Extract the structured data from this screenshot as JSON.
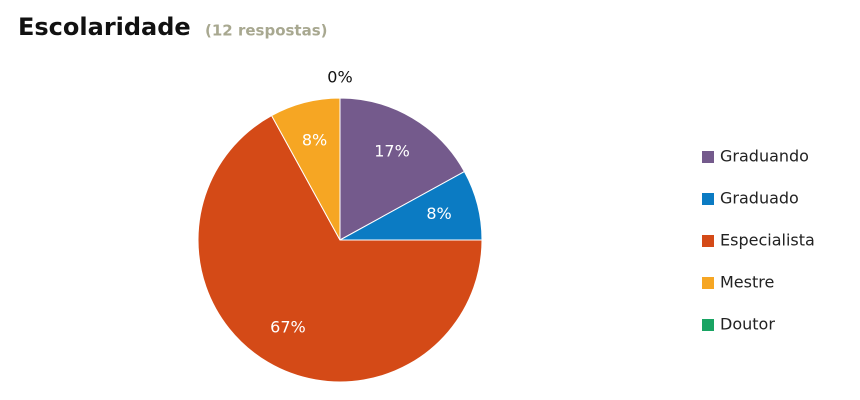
{
  "chart_data": {
    "type": "pie",
    "title": "Escolaridade",
    "subtitle": "(12 respostas)",
    "categories": [
      "Graduando",
      "Graduado",
      "Especialista",
      "Mestre",
      "Doutor"
    ],
    "values": [
      17,
      8,
      67,
      8,
      0
    ],
    "value_labels": [
      "17%",
      "8%",
      "67%",
      "8%",
      "0%"
    ],
    "colors": [
      "#745a8c",
      "#0b7bc3",
      "#d44a17",
      "#f6a623",
      "#19a463"
    ],
    "legend": "right"
  }
}
